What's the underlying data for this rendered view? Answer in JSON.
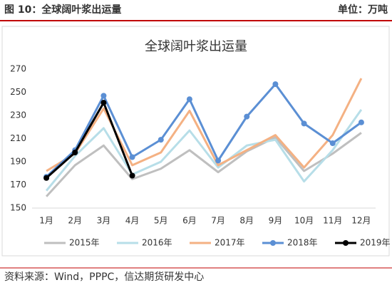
{
  "header": {
    "title": "图 10：全球阔叶浆出运量",
    "unit": "单位：万吨"
  },
  "source": "资料来源：Wind，PPPC，信达期货研发中心",
  "chart_data": {
    "type": "line",
    "title": "全球阔叶浆出运量",
    "categories": [
      "1月",
      "2月",
      "3月",
      "4月",
      "5月",
      "6月",
      "7月",
      "8月",
      "9月",
      "10月",
      "11月",
      "12月"
    ],
    "series": [
      {
        "name": "2015年",
        "color": "#bfbfbf",
        "markers": false,
        "values": [
          160,
          187,
          204,
          175,
          184,
          200,
          181,
          199,
          211,
          182,
          197,
          215
        ]
      },
      {
        "name": "2016年",
        "color": "#b7dee8",
        "markers": false,
        "values": [
          165,
          195,
          219,
          179,
          190,
          217,
          185,
          204,
          209,
          173,
          200,
          235
        ]
      },
      {
        "name": "2017年",
        "color": "#f4b183",
        "markers": false,
        "values": [
          182,
          197,
          236,
          187,
          198,
          234,
          187,
          200,
          213,
          185,
          213,
          262
        ]
      },
      {
        "name": "2018年",
        "color": "#5b8fd4",
        "markers": true,
        "values": [
          177,
          200,
          247,
          194,
          209,
          244,
          191,
          229,
          257,
          223,
          206,
          224
        ]
      },
      {
        "name": "2019年",
        "color": "#000000",
        "markers": true,
        "values": [
          176,
          198,
          241,
          178,
          null,
          null,
          null,
          null,
          null,
          null,
          null,
          null
        ]
      }
    ],
    "ylim": [
      150,
      270
    ],
    "yticks": [
      150,
      170,
      190,
      210,
      230,
      250,
      270
    ],
    "grid": false,
    "legend": "bottom"
  }
}
